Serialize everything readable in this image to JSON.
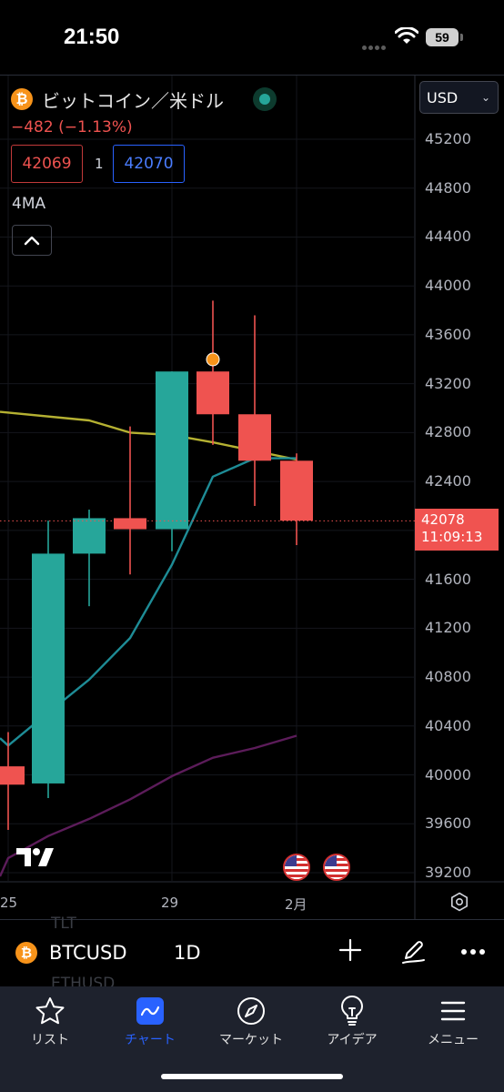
{
  "status_bar": {
    "time": "21:50",
    "battery": "59"
  },
  "header": {
    "symbol_icon": "bitcoin-icon",
    "symbol_title": "ビットコイン／米ドル",
    "change": "−482 (−1.13%)",
    "bid": "42069",
    "spread": "1",
    "ask": "42070",
    "indicator_label": "4MA",
    "currency": "USD"
  },
  "price_axis": {
    "labels": [
      "45200",
      "44800",
      "44400",
      "44000",
      "43600",
      "43200",
      "42800",
      "42400",
      "41600",
      "41200",
      "40800",
      "40400",
      "40000",
      "39600",
      "39200"
    ],
    "last_price": "42078",
    "countdown": "11:09:13"
  },
  "time_axis": {
    "labels": [
      "25",
      "29",
      "2月"
    ]
  },
  "chart_data": {
    "type": "candlestick",
    "interval": "1D",
    "y_range": [
      39100,
      45400
    ],
    "last_price": 42078,
    "candles": [
      {
        "open": 40070,
        "high": 40350,
        "low": 39550,
        "close": 39920,
        "direction": "down"
      },
      {
        "open": 39930,
        "high": 42080,
        "low": 39810,
        "close": 41810,
        "direction": "up"
      },
      {
        "open": 41810,
        "high": 42170,
        "low": 41380,
        "close": 42100,
        "direction": "up"
      },
      {
        "open": 42100,
        "high": 42850,
        "low": 41640,
        "close": 42010,
        "direction": "down"
      },
      {
        "open": 42010,
        "high": 43300,
        "low": 41830,
        "close": 43300,
        "direction": "up"
      },
      {
        "open": 43300,
        "high": 43880,
        "low": 42700,
        "close": 42950,
        "direction": "down"
      },
      {
        "open": 42950,
        "high": 43760,
        "low": 42200,
        "close": 42570,
        "direction": "down"
      },
      {
        "open": 42570,
        "high": 42630,
        "low": 41880,
        "close": 42080,
        "direction": "down"
      }
    ],
    "moving_averages": [
      {
        "color": "#b5b132",
        "values": [
          42970,
          42900,
          42800,
          42780,
          42720,
          42650,
          42580
        ]
      },
      {
        "color": "#1e8c96",
        "values": [
          40240,
          40400,
          40780,
          41120,
          41720,
          42440,
          42590,
          42590
        ]
      },
      {
        "color": "#5c1c5a",
        "values": [
          39320,
          39500,
          39640,
          39800,
          39990,
          40140,
          40220,
          40320
        ]
      }
    ],
    "colors": {
      "up": "#26a69a",
      "down": "#ef5350"
    }
  },
  "symbol_bar": {
    "ghost_above": "TLT",
    "symbol": "BTCUSD",
    "interval": "1D",
    "ghost_below": "ETHUSD"
  },
  "tabs": [
    {
      "label": "リスト",
      "icon": "star-icon"
    },
    {
      "label": "チャート",
      "icon": "chart-icon",
      "active": true
    },
    {
      "label": "マーケット",
      "icon": "compass-icon"
    },
    {
      "label": "アイデア",
      "icon": "lightbulb-icon"
    },
    {
      "label": "メニュー",
      "icon": "hamburger-icon"
    }
  ]
}
